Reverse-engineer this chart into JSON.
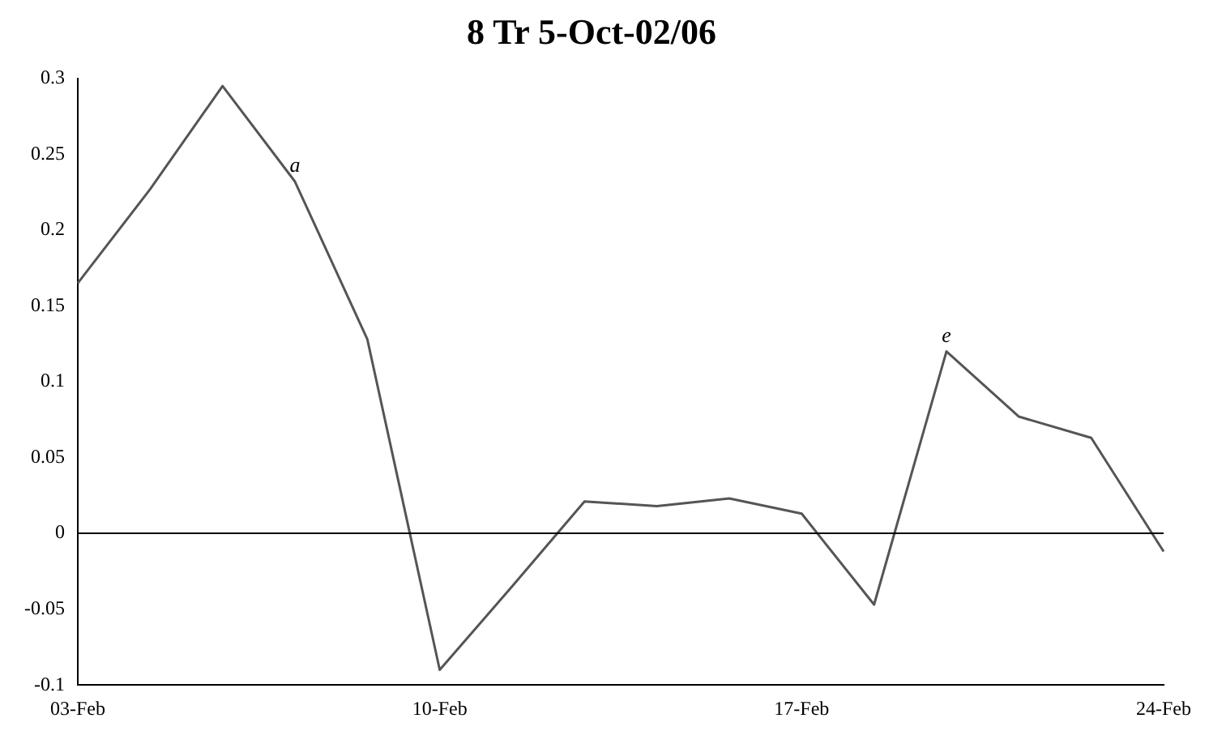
{
  "chart_data": {
    "type": "line",
    "title": "8 Tr 5-Oct-02/06",
    "categories": [
      "03-Feb",
      null,
      null,
      null,
      null,
      "10-Feb",
      null,
      null,
      null,
      null,
      "17-Feb",
      null,
      null,
      null,
      null,
      "24-Feb"
    ],
    "series": [
      {
        "color": "#555555",
        "values": [
          0.165,
          0.227,
          0.295,
          0.232,
          0.128,
          -0.09,
          -0.035,
          0.021,
          0.018,
          0.023,
          0.013,
          -0.047,
          0.12,
          0.077,
          0.063,
          -0.012
        ]
      }
    ],
    "ylim": [
      -0.1,
      0.3
    ],
    "yticks": [
      -0.1,
      -0.05,
      0,
      0.05,
      0.1,
      0.15,
      0.2,
      0.25,
      0.3
    ],
    "ref_lines": [
      {
        "axis": "y",
        "value": 0,
        "color": "#000000"
      }
    ],
    "annotations": [
      {
        "text": "a",
        "y": 0.232
      },
      {
        "text": "e",
        "y": 0.12
      }
    ],
    "grid": false,
    "legend": false,
    "marker": "none",
    "line_style": "solid"
  }
}
